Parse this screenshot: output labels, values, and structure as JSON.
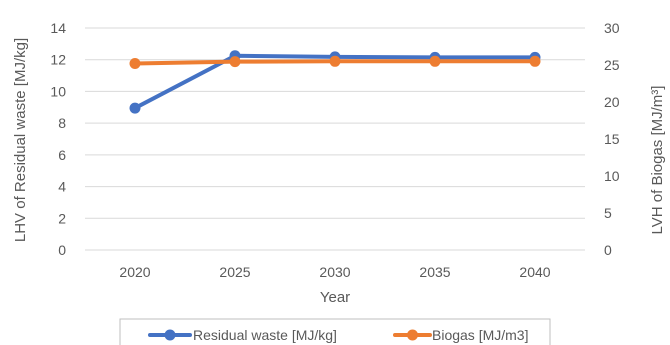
{
  "chart_data": {
    "type": "line",
    "title": "",
    "xlabel": "Year",
    "ylabel": "LHV of Residual waste [MJ/kg]",
    "y2label": "LVH of Biogas [MJ/m³]",
    "categories": [
      "2020",
      "2025",
      "2030",
      "2035",
      "2040"
    ],
    "ylim": [
      0,
      14
    ],
    "yticks": [
      "0",
      "2",
      "4",
      "6",
      "8",
      "10",
      "12",
      "14"
    ],
    "y2lim": [
      0,
      30
    ],
    "y2ticks": [
      "0",
      "5",
      "10",
      "15",
      "20",
      "25",
      "30"
    ],
    "grid": "horizontal",
    "legend_position": "bottom",
    "series": [
      {
        "name": "Residual waste [MJ/kg]",
        "axis": "left",
        "color": "#4472C4",
        "values": [
          8.95,
          12.25,
          12.18,
          12.15,
          12.15
        ]
      },
      {
        "name": "Biogas [MJ/m3]",
        "axis": "right",
        "color": "#ED7D31",
        "values": [
          25.2,
          25.45,
          25.5,
          25.5,
          25.5
        ]
      }
    ]
  }
}
